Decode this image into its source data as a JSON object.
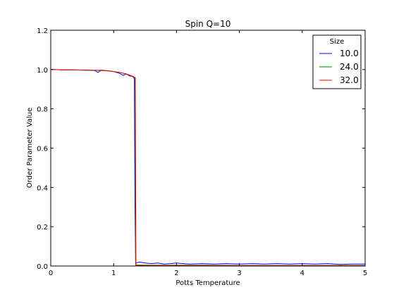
{
  "chart_data": {
    "type": "line",
    "title": "Spin Q=10",
    "xlabel": "Potts Temperature",
    "ylabel": "Order Parameter Value",
    "xlim": [
      0,
      5
    ],
    "ylim": [
      0,
      1.2
    ],
    "xticks": [
      0,
      1,
      2,
      3,
      4,
      5
    ],
    "xtick_labels": [
      "0",
      "1",
      "2",
      "3",
      "4",
      "5"
    ],
    "yticks": [
      0.0,
      0.2,
      0.4,
      0.6,
      0.8,
      1.0,
      1.2
    ],
    "ytick_labels": [
      "0.0",
      "0.2",
      "0.4",
      "0.6",
      "0.8",
      "1.0",
      "1.2"
    ],
    "grid": false,
    "legend": {
      "title": "Size",
      "placement": "top-right"
    },
    "series": [
      {
        "name": "10.0",
        "color": "#0000ff",
        "x": [
          0,
          0.2,
          0.4,
          0.6,
          0.7,
          0.75,
          0.8,
          0.9,
          1.0,
          1.05,
          1.1,
          1.15,
          1.2,
          1.25,
          1.3,
          1.33,
          1.34,
          1.35,
          1.36,
          1.4,
          1.5,
          1.6,
          1.7,
          1.8,
          1.9,
          2.0,
          2.2,
          2.4,
          2.6,
          2.8,
          3.0,
          3.2,
          3.4,
          3.6,
          3.8,
          4.0,
          4.2,
          4.4,
          4.6,
          4.8,
          5.0
        ],
        "y": [
          1.0,
          0.998,
          0.998,
          0.996,
          0.995,
          0.985,
          0.997,
          0.994,
          0.99,
          0.985,
          0.98,
          0.97,
          0.978,
          0.968,
          0.965,
          0.955,
          0.3,
          0.02,
          0.015,
          0.02,
          0.015,
          0.012,
          0.015,
          0.01,
          0.012,
          0.015,
          0.01,
          0.012,
          0.01,
          0.012,
          0.01,
          0.012,
          0.01,
          0.012,
          0.01,
          0.012,
          0.01,
          0.012,
          0.008,
          0.01,
          0.01
        ]
      },
      {
        "name": "24.0",
        "color": "#008000",
        "x": [
          0,
          0.2,
          0.4,
          0.6,
          0.8,
          0.9,
          1.0,
          1.1,
          1.2,
          1.25,
          1.3,
          1.34,
          1.345,
          1.35,
          1.4,
          1.6,
          2.0,
          2.5,
          3.0,
          3.5,
          4.0,
          4.5,
          5.0
        ],
        "y": [
          1.0,
          0.999,
          0.998,
          0.997,
          0.995,
          0.993,
          0.99,
          0.985,
          0.978,
          0.972,
          0.966,
          0.96,
          0.5,
          0.005,
          0.005,
          0.004,
          0.004,
          0.004,
          0.003,
          0.003,
          0.003,
          0.003,
          0.003
        ]
      },
      {
        "name": "32.0",
        "color": "#ff0000",
        "x": [
          0,
          0.2,
          0.4,
          0.6,
          0.8,
          0.9,
          1.0,
          1.1,
          1.2,
          1.25,
          1.3,
          1.345,
          1.35,
          1.355,
          1.4,
          1.6,
          2.0,
          2.5,
          3.0,
          3.5,
          4.0,
          4.5,
          5.0
        ],
        "y": [
          1.0,
          0.999,
          0.998,
          0.997,
          0.996,
          0.994,
          0.99,
          0.985,
          0.978,
          0.972,
          0.966,
          0.958,
          0.5,
          0.003,
          0.003,
          0.003,
          0.003,
          0.003,
          0.002,
          0.002,
          0.002,
          0.002,
          0.002
        ]
      }
    ]
  }
}
